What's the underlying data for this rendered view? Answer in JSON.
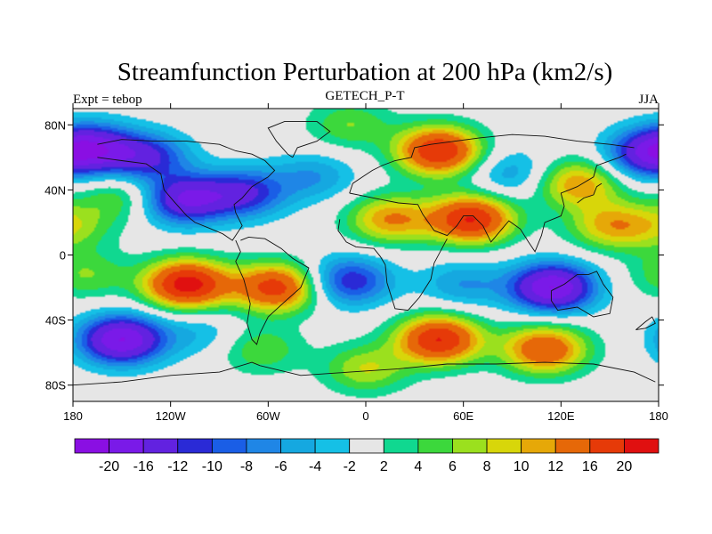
{
  "chart_data": {
    "type": "heatmap",
    "title": "Streamfunction Perturbation at 200 hPa (km2/s)",
    "subtitle_center": "GETECH_P-T",
    "subtitle_left": "Expt = tebop",
    "subtitle_right": "JJA",
    "xlim": [
      -180,
      180
    ],
    "ylim": [
      -90,
      90
    ],
    "x_ticks": [
      {
        "value": -180,
        "label": "180"
      },
      {
        "value": -120,
        "label": "120W"
      },
      {
        "value": -60,
        "label": "60W"
      },
      {
        "value": 0,
        "label": "0"
      },
      {
        "value": 60,
        "label": "60E"
      },
      {
        "value": 120,
        "label": "120E"
      },
      {
        "value": 180,
        "label": "180"
      }
    ],
    "y_ticks": [
      {
        "value": 80,
        "label": "80N"
      },
      {
        "value": 40,
        "label": "40N"
      },
      {
        "value": 0,
        "label": "0"
      },
      {
        "value": -40,
        "label": "40S"
      },
      {
        "value": -80,
        "label": "80S"
      }
    ],
    "colorbar": {
      "levels": [
        -20,
        -16,
        -12,
        -10,
        -8,
        -6,
        -4,
        -2,
        2,
        4,
        6,
        8,
        10,
        12,
        16,
        20
      ],
      "labels": [
        "-20",
        "-16",
        "-12",
        "-10",
        "-8",
        "-6",
        "-4",
        "-2",
        "2",
        "4",
        "6",
        "8",
        "10",
        "12",
        "16",
        "20"
      ],
      "colors": [
        "#8a0fe3",
        "#7a1ae8",
        "#6222e0",
        "#2a2ad6",
        "#1a5ee6",
        "#1f86e6",
        "#15a8e0",
        "#15c0e6",
        "#e6e6e6",
        "#10d890",
        "#3cd83c",
        "#9be01e",
        "#d8d60a",
        "#e6a808",
        "#e66808",
        "#e63a08",
        "#e01010"
      ]
    },
    "centers": [
      {
        "lon": -168,
        "lat": 66,
        "value": -14
      },
      {
        "lon": -135,
        "lat": 60,
        "value": -12
      },
      {
        "lon": -112,
        "lat": 34,
        "value": -16
      },
      {
        "lon": -75,
        "lat": 38,
        "value": -12
      },
      {
        "lon": -32,
        "lat": 48,
        "value": -6
      },
      {
        "lon": -150,
        "lat": 36,
        "value": 6
      },
      {
        "lon": -180,
        "lat": 18,
        "value": 6
      },
      {
        "lon": -10,
        "lat": 80,
        "value": 6
      },
      {
        "lon": 45,
        "lat": 64,
        "value": 20
      },
      {
        "lon": 90,
        "lat": 50,
        "value": -6
      },
      {
        "lon": 130,
        "lat": 44,
        "value": 12
      },
      {
        "lon": 172,
        "lat": 62,
        "value": -12
      },
      {
        "lon": 15,
        "lat": 22,
        "value": 12
      },
      {
        "lon": 65,
        "lat": 22,
        "value": 20
      },
      {
        "lon": 150,
        "lat": 18,
        "value": 10
      },
      {
        "lon": -110,
        "lat": -18,
        "value": 22
      },
      {
        "lon": -55,
        "lat": -20,
        "value": 18
      },
      {
        "lon": -172,
        "lat": -12,
        "value": 6
      },
      {
        "lon": -10,
        "lat": -16,
        "value": -12
      },
      {
        "lon": 60,
        "lat": -18,
        "value": -6
      },
      {
        "lon": 115,
        "lat": -20,
        "value": -20
      },
      {
        "lon": -150,
        "lat": -52,
        "value": -20
      },
      {
        "lon": -100,
        "lat": -48,
        "value": -4
      },
      {
        "lon": -65,
        "lat": -58,
        "value": 6
      },
      {
        "lon": 45,
        "lat": -52,
        "value": 20
      },
      {
        "lon": 110,
        "lat": -58,
        "value": 16
      },
      {
        "lon": 0,
        "lat": -70,
        "value": 8
      }
    ],
    "grid": false,
    "legend": "bottom-colorbar"
  }
}
